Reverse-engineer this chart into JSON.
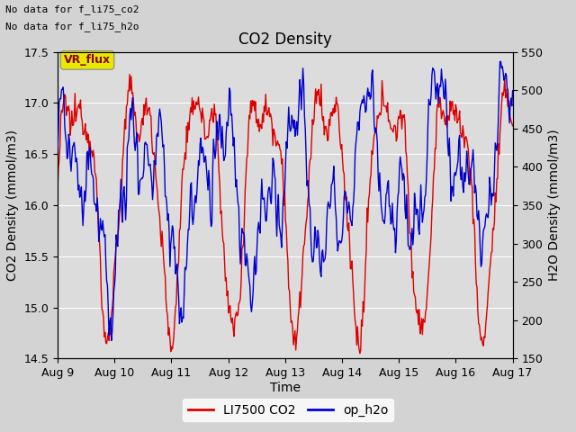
{
  "title": "CO2 Density",
  "xlabel": "Time",
  "ylabel_left": "CO2 Density (mmol/m3)",
  "ylabel_right": "H2O Density (mmol/m3)",
  "ylim_left": [
    14.5,
    17.5
  ],
  "ylim_right": [
    150,
    550
  ],
  "yticks_left": [
    14.5,
    15.0,
    15.5,
    16.0,
    16.5,
    17.0,
    17.5
  ],
  "yticks_right": [
    150,
    200,
    250,
    300,
    350,
    400,
    450,
    500,
    550
  ],
  "xtick_labels": [
    "Aug 9",
    "Aug 10",
    "Aug 11",
    "Aug 12",
    "Aug 13",
    "Aug 14",
    "Aug 15",
    "Aug 16",
    "Aug 17"
  ],
  "legend_labels": [
    "LI7500 CO2",
    "op_h2o"
  ],
  "text_upper_left": [
    "No data for f_li75_co2",
    "No data for f_li75_h2o"
  ],
  "vr_flux_label": "VR_flux",
  "vr_flux_bg": "#e8e800",
  "vr_flux_text": "#8b0000",
  "figure_bg": "#d3d3d3",
  "plot_bg": "#dcdcdc",
  "grid_color": "#ffffff",
  "co2_color": "#dd0000",
  "h2o_color": "#0000cc",
  "co2_linewidth": 1.0,
  "h2o_linewidth": 1.0
}
